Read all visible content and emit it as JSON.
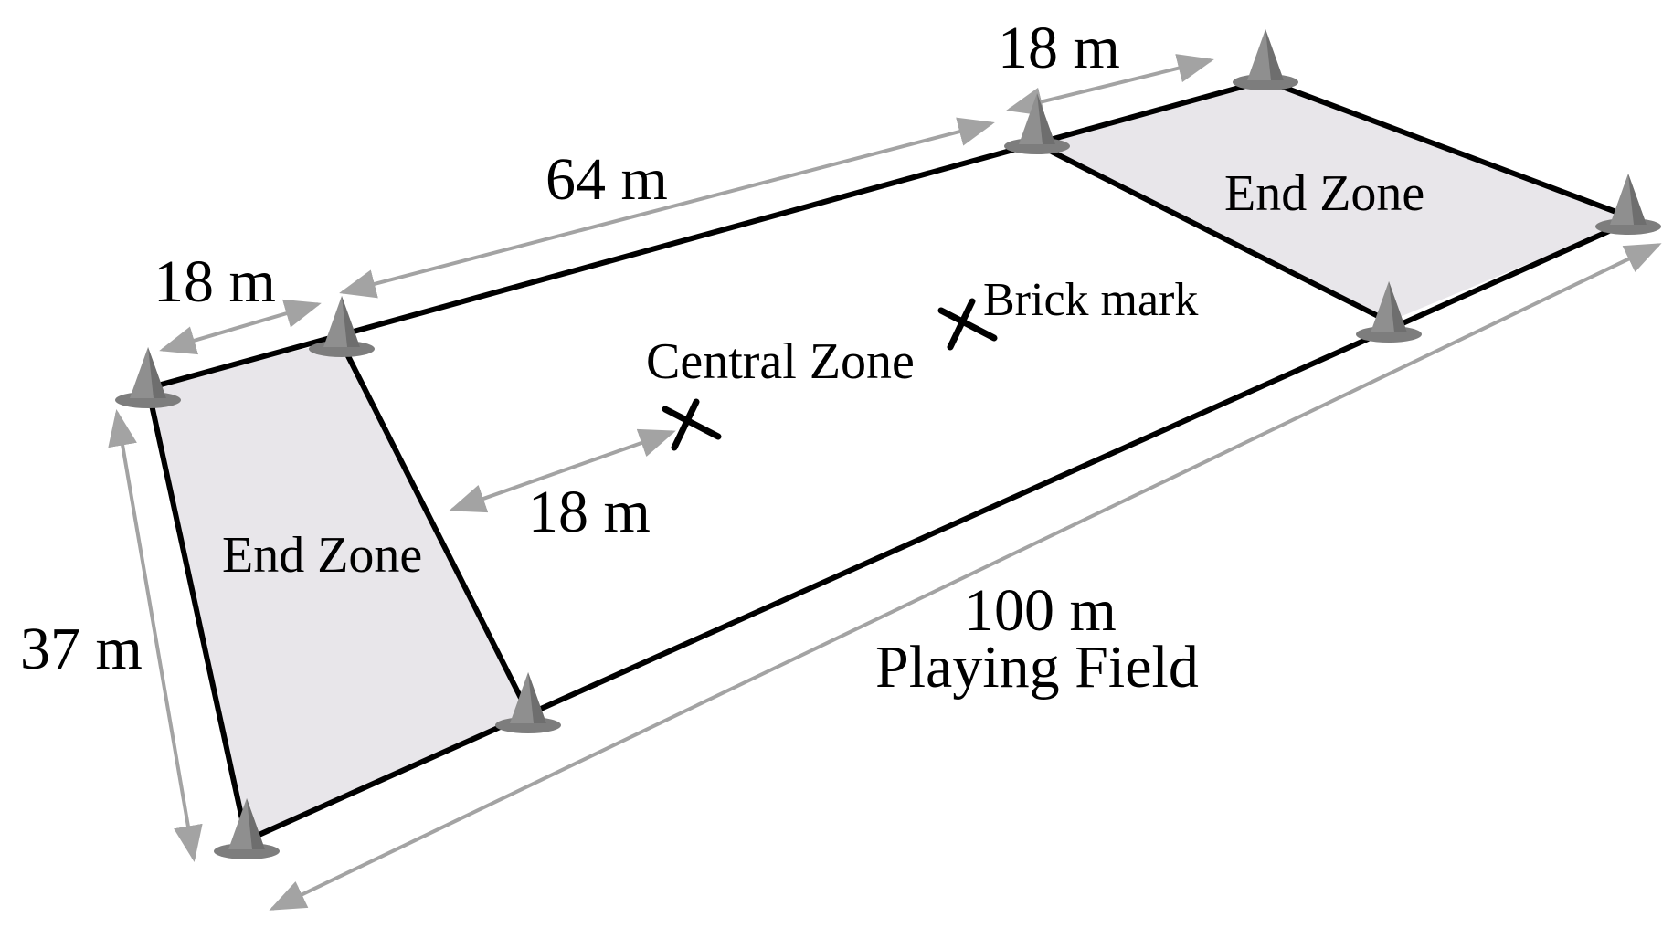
{
  "colors": {
    "field_line": "#000000",
    "end_zone_fill": "#e8e6ea",
    "dimension_arrow": "#a3a3a3",
    "cone": "#8f8f8f",
    "cone_dark": "#6e6e6e",
    "mark": "#000000"
  },
  "labels": {
    "playing_field_length": "100 m",
    "playing_field": "Playing Field",
    "field_width": "37 m",
    "end_zone_left": "End Zone",
    "end_zone_right": "End Zone",
    "central_zone": "Central Zone",
    "central_length": "64 m",
    "end_zone_depth_left": "18 m",
    "end_zone_depth_right": "18 m",
    "brick_distance": "18 m",
    "brick_mark": "Brick mark"
  },
  "markers": {
    "cone_icon": "cone-icon",
    "mark_icon": "x-mark-icon"
  }
}
